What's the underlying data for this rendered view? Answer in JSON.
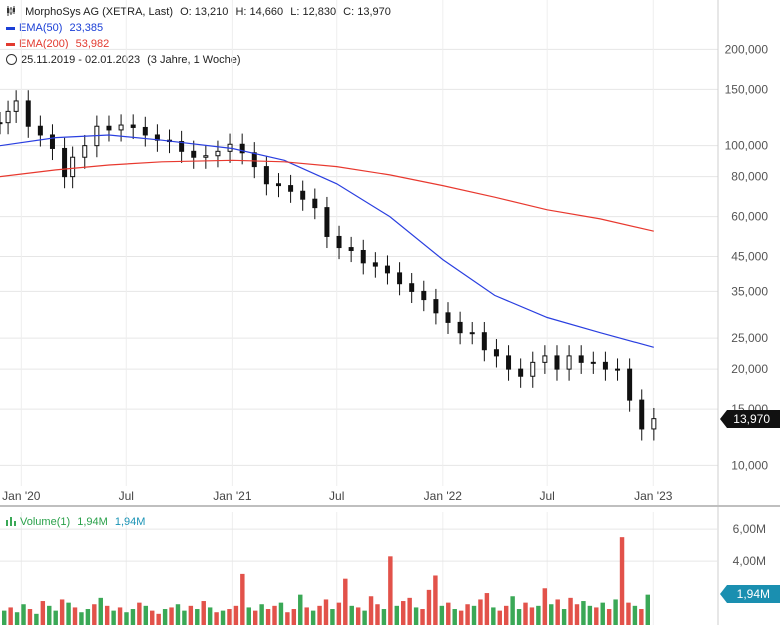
{
  "header": {
    "symbol_line": "MorphoSys AG (XETRA, Last)",
    "open": "O: 13,210",
    "high": "H: 14,660",
    "low": "L: 12,830",
    "close": "C: 13,970",
    "ema50_label": "EMA(50)",
    "ema50_value": "23,385",
    "ema200_label": "EMA(200)",
    "ema200_value": "53,982",
    "range": "25.11.2019 - 02.01.2023",
    "range_span": "(3 Jahre, 1 Woche)",
    "volume_label": "Volume(1)",
    "volume_v1": "1,94M",
    "volume_v2": "1,94M"
  },
  "colors": {
    "ema50": "#2a3fe0",
    "ema200": "#e8392f",
    "up": "#3aa856",
    "down": "#e2524a",
    "badge_price": "#111111",
    "badge_volume": "#1a8fb0"
  },
  "chart_data": [
    {
      "type": "line",
      "title": "MorphoSys AG (XETRA, Last)",
      "scale": "log",
      "ylim": [
        9.0,
        230
      ],
      "y_ticks": [
        "200,000",
        "150,000",
        "100,000",
        "80,000",
        "60,000",
        "45,000",
        "35,000",
        "25,000",
        "20,000",
        "15,000",
        "10,000"
      ],
      "y_tick_values": [
        200,
        150,
        100,
        80,
        60,
        45,
        35,
        25,
        20,
        15,
        10
      ],
      "x_ticks": [
        "Jan '20",
        "Jul",
        "Jan '21",
        "Jul",
        "Jan '22",
        "Jul",
        "Jan '23"
      ],
      "x_tick_dates": [
        "2020-01-01",
        "2020-07-01",
        "2021-01-01",
        "2021-07-01",
        "2022-01-01",
        "2022-07-01",
        "2023-01-01"
      ],
      "last_price_label": "13,970",
      "last_price": 13.97,
      "series": [
        {
          "name": "MorphoSys AG (XETRA, Last)",
          "style": "candlestick",
          "dates": [
            "2019-11-25",
            "2019-12-09",
            "2019-12-23",
            "2020-01-13",
            "2020-02-03",
            "2020-02-24",
            "2020-03-16",
            "2020-03-30",
            "2020-04-20",
            "2020-05-11",
            "2020-06-01",
            "2020-06-22",
            "2020-07-13",
            "2020-08-03",
            "2020-08-24",
            "2020-09-14",
            "2020-10-05",
            "2020-10-26",
            "2020-11-16",
            "2020-12-07",
            "2020-12-28",
            "2021-01-18",
            "2021-02-08",
            "2021-03-01",
            "2021-03-22",
            "2021-04-12",
            "2021-05-03",
            "2021-05-24",
            "2021-06-14",
            "2021-07-05",
            "2021-07-26",
            "2021-08-16",
            "2021-09-06",
            "2021-09-27",
            "2021-10-18",
            "2021-11-08",
            "2021-11-29",
            "2021-12-20",
            "2022-01-10",
            "2022-01-31",
            "2022-02-21",
            "2022-03-14",
            "2022-04-04",
            "2022-04-25",
            "2022-05-16",
            "2022-06-06",
            "2022-06-27",
            "2022-07-18",
            "2022-08-08",
            "2022-08-29",
            "2022-09-19",
            "2022-10-10",
            "2022-10-31",
            "2022-11-21",
            "2022-12-12",
            "2023-01-02"
          ],
          "values": [
            118,
            128,
            138,
            115,
            108,
            98,
            80,
            92,
            100,
            115,
            112,
            116,
            114,
            108,
            104,
            103,
            96,
            92,
            93,
            96,
            101,
            95,
            86,
            76,
            75,
            72,
            68,
            64,
            52,
            48,
            47,
            43,
            42,
            40,
            37,
            35,
            33,
            30,
            28,
            26,
            26,
            23,
            22,
            20,
            19,
            21,
            22,
            20,
            22,
            21,
            21,
            20,
            20,
            16,
            13,
            14
          ]
        },
        {
          "name": "EMA(50)",
          "dates": [
            "2019-11-25",
            "2020-03-01",
            "2020-06-01",
            "2020-09-01",
            "2021-01-01",
            "2021-04-01",
            "2021-07-01",
            "2021-10-01",
            "2022-01-01",
            "2022-04-01",
            "2022-07-01",
            "2022-10-01",
            "2023-01-02"
          ],
          "values": [
            100,
            106,
            108,
            104,
            98,
            90,
            76,
            60,
            44,
            34,
            29,
            26,
            23.4
          ]
        },
        {
          "name": "EMA(200)",
          "dates": [
            "2019-11-25",
            "2020-03-01",
            "2020-06-01",
            "2020-09-01",
            "2021-01-01",
            "2021-04-01",
            "2021-07-01",
            "2021-10-01",
            "2022-01-01",
            "2022-04-01",
            "2022-07-01",
            "2022-10-01",
            "2023-01-02"
          ],
          "values": [
            80,
            84,
            87,
            89,
            90,
            89,
            86,
            81,
            75,
            69,
            63,
            59,
            54
          ]
        }
      ]
    },
    {
      "type": "bar",
      "title": "Volume(1)",
      "ylim": [
        0,
        7.2
      ],
      "y_ticks": [
        "6,00M",
        "4,00M"
      ],
      "y_tick_values": [
        6,
        4
      ],
      "last_volume_label": "1,94M",
      "last_volume": 1.94,
      "values": [
        0.9,
        1.1,
        0.8,
        1.3,
        1.0,
        0.7,
        1.5,
        1.2,
        0.9,
        1.6,
        1.4,
        1.1,
        0.8,
        1.0,
        1.3,
        1.7,
        1.2,
        0.9,
        1.1,
        0.8,
        1.0,
        1.4,
        1.2,
        0.9,
        0.7,
        1.0,
        1.1,
        1.3,
        0.9,
        1.2,
        1.0,
        1.5,
        1.1,
        0.8,
        0.9,
        1.0,
        1.2,
        3.2,
        1.1,
        0.9,
        1.3,
        1.0,
        1.2,
        1.4,
        0.8,
        1.0,
        1.9,
        1.1,
        0.9,
        1.2,
        1.6,
        1.0,
        1.4,
        2.9,
        1.2,
        1.1,
        0.9,
        1.8,
        1.3,
        1.0,
        4.3,
        1.2,
        1.5,
        1.7,
        1.1,
        1.0,
        2.2,
        3.1,
        1.2,
        1.4,
        1.0,
        0.9,
        1.3,
        1.2,
        1.6,
        2.0,
        1.1,
        0.9,
        1.2,
        1.8,
        1.0,
        1.4,
        1.1,
        1.2,
        2.3,
        1.3,
        1.6,
        1.0,
        1.7,
        1.3,
        1.5,
        1.2,
        1.1,
        1.4,
        1.0,
        1.6,
        5.5,
        1.4,
        1.2,
        1.0,
        1.9
      ],
      "up_flags": [
        1,
        0,
        1,
        1,
        0,
        1,
        0,
        1,
        1,
        0,
        1,
        0,
        1,
        1,
        0,
        1,
        0,
        1,
        0,
        1,
        1,
        0,
        1,
        0,
        0,
        1,
        0,
        1,
        1,
        0,
        1,
        0,
        1,
        0,
        1,
        0,
        0,
        0,
        1,
        0,
        1,
        0,
        0,
        1,
        0,
        0,
        1,
        0,
        1,
        0,
        0,
        1,
        0,
        0,
        1,
        0,
        1,
        0,
        0,
        1,
        0,
        1,
        0,
        0,
        1,
        0,
        0,
        0,
        1,
        0,
        1,
        0,
        0,
        1,
        0,
        0,
        1,
        0,
        0,
        1,
        1,
        0,
        0,
        1,
        0,
        1,
        0,
        1,
        0,
        0,
        1,
        1,
        0,
        1,
        0,
        1,
        0,
        0,
        1,
        0,
        1
      ]
    }
  ]
}
